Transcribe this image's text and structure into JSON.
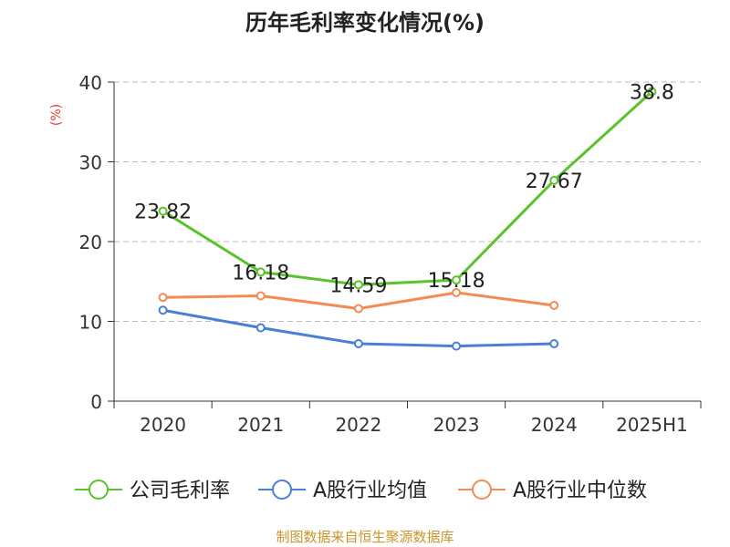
{
  "chart_data": {
    "type": "line",
    "title": "历年毛利率变化情况(%)",
    "ylabel": "(%)",
    "xlabel": "",
    "categories": [
      "2020",
      "2021",
      "2022",
      "2023",
      "2024",
      "2025H1"
    ],
    "yticks": [
      "0",
      "10",
      "20",
      "30",
      "40"
    ],
    "ylim": [
      0,
      40
    ],
    "grid": true,
    "legend_position": "bottom",
    "series": [
      {
        "name": "公司毛利率",
        "color": "#5ac32a",
        "values": [
          23.82,
          16.18,
          14.59,
          15.18,
          27.67,
          38.8
        ],
        "labels": [
          "23.82",
          "16.18",
          "14.59",
          "15.18",
          "27.67",
          "38.8"
        ]
      },
      {
        "name": "A股行业均值",
        "color": "#4a7fd6",
        "values": [
          11.4,
          9.2,
          7.2,
          6.9,
          7.2,
          null
        ]
      },
      {
        "name": "A股行业中位数",
        "color": "#f58a55",
        "values": [
          13.0,
          13.2,
          11.6,
          13.6,
          12.0,
          null
        ]
      }
    ]
  },
  "footer": {
    "source": "制图数据来自恒生聚源数据库"
  }
}
